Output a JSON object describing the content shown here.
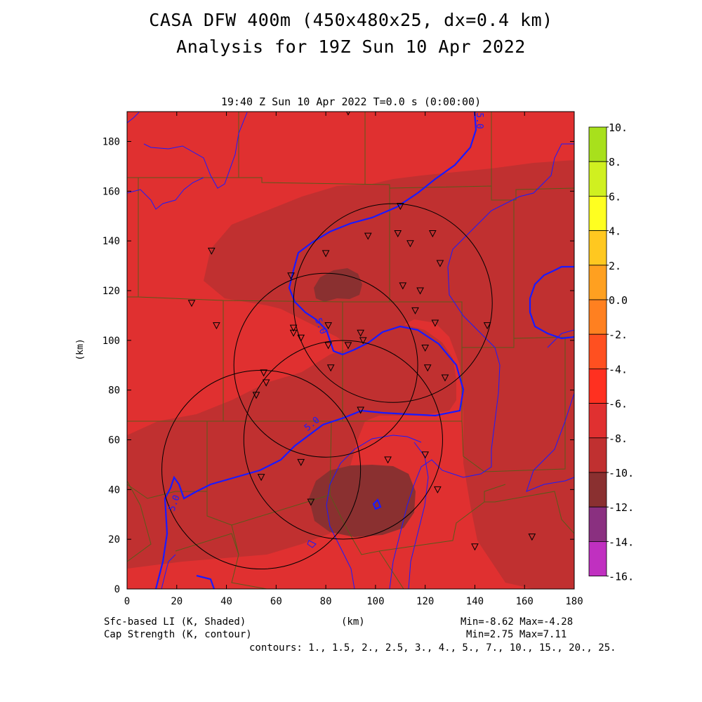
{
  "header": {
    "title_line1": "CASA DFW 400m (450x480x25, dx=0.4 km)",
    "title_line2": "Analysis for 19Z Sun 10 Apr 2022",
    "valid_time": "19:40 Z Sun 10 Apr 2022    T=0.0 s (0:00:00)"
  },
  "footer": {
    "field1": "Sfc-based LI (K, Shaded)",
    "field2": "Cap Strength (K, contour)",
    "xunit": "(km)",
    "minmax1": "Min=-8.62 Max=-4.28",
    "minmax2": "Min=2.75 Max=7.11",
    "contours": "contours: 1., 1.5, 2., 2.5, 3., 4., 5., 7., 10., 15., 20., 25."
  },
  "chart_data": {
    "type": "heatmap",
    "xlabel": "",
    "ylabel": "(km)",
    "xlim": [
      0,
      180
    ],
    "ylim": [
      0,
      192
    ],
    "xticks": [
      0,
      20,
      40,
      60,
      80,
      100,
      120,
      140,
      160,
      180
    ],
    "yticks": [
      0,
      20,
      40,
      60,
      80,
      100,
      120,
      140,
      160,
      180
    ],
    "colorbar": {
      "levels": [
        10,
        8,
        6,
        4,
        2,
        0,
        -2,
        -4,
        -6,
        -8,
        -10,
        -12,
        -14,
        -16
      ],
      "labels": [
        "10.",
        "8.",
        "6.",
        "4.",
        "2.",
        "0.0",
        "-2.",
        "-4.",
        "-6.",
        "-8.",
        "-10.",
        "-12.",
        "-14.",
        "-16."
      ],
      "colors": [
        "#a8e01c",
        "#d0f020",
        "#ffff20",
        "#ffc820",
        "#ffa020",
        "#ff8020",
        "#ff5020",
        "#ff3020",
        "#e03030",
        "#c03030",
        "#8a3030",
        "#8a3080",
        "#c030c0",
        "#e040e0"
      ]
    },
    "li_field": {
      "background_class": "-6 to -4",
      "background_color": "#e03030",
      "regions": [
        {
          "class": "-8 to -6",
          "color": "#c03030"
        },
        {
          "class": "-10 to -8",
          "color": "#8a3030"
        }
      ]
    },
    "contour_label": "5.0",
    "radar_circles": [
      {
        "cx": 107,
        "cy": 115,
        "r": 40
      },
      {
        "cx": 80,
        "cy": 90,
        "r": 37
      },
      {
        "cx": 87,
        "cy": 60,
        "r": 40
      },
      {
        "cx": 54,
        "cy": 48,
        "r": 40
      }
    ],
    "stations": [
      [
        89,
        192
      ],
      [
        110,
        154
      ],
      [
        97,
        142
      ],
      [
        109,
        143
      ],
      [
        114,
        139
      ],
      [
        123,
        143
      ],
      [
        34,
        136
      ],
      [
        80,
        135
      ],
      [
        66,
        126
      ],
      [
        126,
        131
      ],
      [
        111,
        122
      ],
      [
        118,
        120
      ],
      [
        26,
        115
      ],
      [
        116,
        112
      ],
      [
        36,
        106
      ],
      [
        81,
        106
      ],
      [
        124,
        107
      ],
      [
        145,
        106
      ],
      [
        67,
        105
      ],
      [
        67,
        103
      ],
      [
        70,
        101
      ],
      [
        94,
        103
      ],
      [
        95,
        100
      ],
      [
        89,
        98
      ],
      [
        81,
        98
      ],
      [
        120,
        97
      ],
      [
        55,
        87
      ],
      [
        56,
        83
      ],
      [
        82,
        89
      ],
      [
        121,
        89
      ],
      [
        128,
        85
      ],
      [
        52,
        78
      ],
      [
        94,
        72
      ],
      [
        70,
        51
      ],
      [
        105,
        52
      ],
      [
        120,
        54
      ],
      [
        54,
        45
      ],
      [
        125,
        40
      ],
      [
        74,
        35
      ],
      [
        140,
        17
      ],
      [
        163,
        21
      ]
    ]
  }
}
